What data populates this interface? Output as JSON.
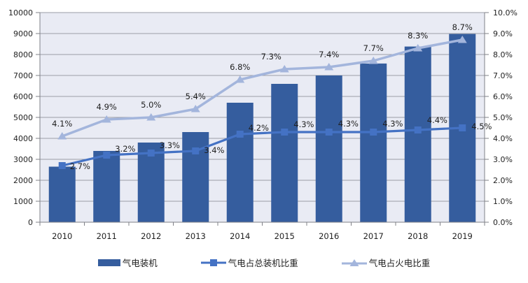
{
  "chart_data": {
    "type": "bar",
    "subtype": "combo-bar-line-dual-axis",
    "title": "",
    "categories": [
      "2010",
      "2011",
      "2012",
      "2013",
      "2014",
      "2015",
      "2016",
      "2017",
      "2018",
      "2019"
    ],
    "series": [
      {
        "name": "气电装机",
        "type": "bar",
        "axis": "left",
        "color": "#355D9E",
        "values": [
          2650,
          3400,
          3800,
          4300,
          5700,
          6600,
          7000,
          7570,
          8380,
          8980
        ]
      },
      {
        "name": "气电占总装机比重",
        "type": "line",
        "marker": "square",
        "axis": "right",
        "color": "#4472C4",
        "values": [
          2.7,
          3.2,
          3.3,
          3.4,
          4.2,
          4.3,
          4.3,
          4.3,
          4.4,
          4.5
        ],
        "labels": [
          "2.7%",
          "3.2%",
          "3.3%",
          "3.4%",
          "4.2%",
          "4.3%",
          "4.3%",
          "4.3%",
          "4.4%",
          "4.5%"
        ]
      },
      {
        "name": "气电占火电比重",
        "type": "line",
        "marker": "triangle",
        "axis": "right",
        "color": "#A3B5DC",
        "values": [
          4.1,
          4.9,
          5.0,
          5.4,
          6.8,
          7.3,
          7.4,
          7.7,
          8.3,
          8.7
        ],
        "labels": [
          "4.1%",
          "4.9%",
          "5.0%",
          "5.4%",
          "6.8%",
          "7.3%",
          "7.4%",
          "7.7%",
          "8.3%",
          "8.7%"
        ]
      }
    ],
    "left_axis": {
      "min": 0,
      "max": 10000,
      "step": 1000,
      "ticks": [
        "0",
        "1000",
        "2000",
        "3000",
        "4000",
        "5000",
        "6000",
        "7000",
        "8000",
        "9000",
        "10000"
      ]
    },
    "right_axis": {
      "min": 0,
      "max": 10,
      "step": 1,
      "ticks": [
        "0.0%",
        "1.0%",
        "2.0%",
        "3.0%",
        "4.0%",
        "5.0%",
        "6.0%",
        "7.0%",
        "8.0%",
        "9.0%",
        "10.0%"
      ]
    },
    "grid": true,
    "legend_position": "bottom",
    "colors": {
      "plot_bg": "#E9EBF4",
      "grid": "#9A9DA6",
      "axis": "#7F8087",
      "label_text": "#1f1f1f"
    }
  },
  "legend": {
    "items": [
      {
        "label": "气电装机",
        "swatch": "bar"
      },
      {
        "label": "气电占总装机比重",
        "swatch": "line-square"
      },
      {
        "label": "气电占火电比重",
        "swatch": "line-triangle"
      }
    ]
  }
}
